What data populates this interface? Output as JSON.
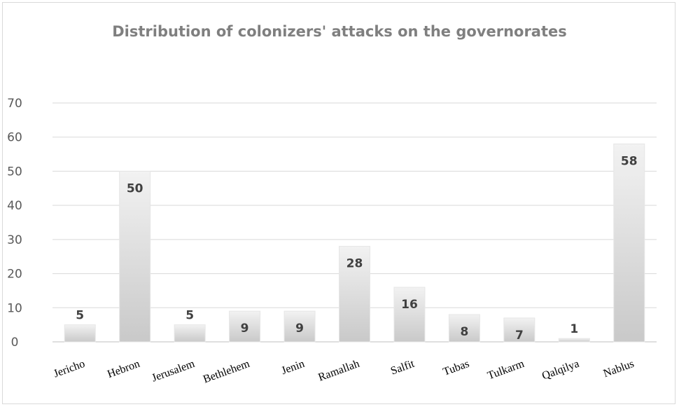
{
  "chart_data": {
    "type": "bar",
    "title": "Distribution of colonizers' attacks on the governorates",
    "xlabel": "",
    "ylabel": "",
    "categories": [
      "Jericho",
      "Hebron",
      "Jerusalem",
      "Bethlehem",
      "Jenin",
      "Ramallah",
      "Salfit",
      "Tubas",
      "Tulkarm",
      "Qalqilya",
      "Nablus"
    ],
    "values": [
      5,
      50,
      5,
      9,
      9,
      28,
      16,
      8,
      7,
      1,
      58
    ],
    "ylim": [
      0,
      70
    ],
    "yticks": [
      0,
      10,
      20,
      30,
      40,
      50,
      60,
      70
    ],
    "grid": true,
    "legend": "none",
    "colors": {
      "bar_light": "#efefef",
      "bar_dark": "#cfcfcf",
      "grid": "#d9d9d9",
      "axis": "#bfbfbf"
    }
  }
}
